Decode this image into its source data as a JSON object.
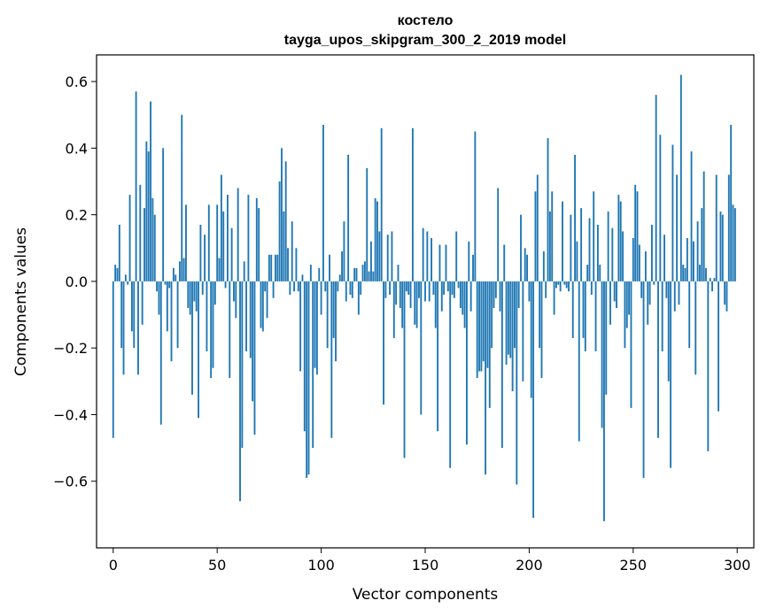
{
  "chart_data": {
    "type": "bar",
    "title": "костело",
    "subtitle": "tayga_upos_skipgram_300_2_2019 model",
    "xlabel": "Vector components",
    "ylabel": "Components values",
    "xlim": [
      -8,
      308
    ],
    "ylim": [
      -0.8,
      0.68
    ],
    "x_ticks": [
      0,
      50,
      100,
      150,
      200,
      250,
      300
    ],
    "x_tick_labels": [
      "0",
      "50",
      "100",
      "150",
      "200",
      "250",
      "300"
    ],
    "y_ticks": [
      -0.6,
      -0.4,
      -0.2,
      0.0,
      0.2,
      0.4,
      0.6
    ],
    "y_tick_labels": [
      "−0.6",
      "−0.4",
      "−0.2",
      "0.0",
      "0.2",
      "0.4",
      "0.6"
    ],
    "bar_color": "#1f77b4",
    "x": "indices 0..299",
    "values": [
      -0.47,
      0.05,
      0.04,
      0.17,
      -0.2,
      -0.28,
      0.02,
      -0.01,
      0.26,
      -0.15,
      -0.2,
      0.57,
      -0.28,
      0.29,
      -0.13,
      0.22,
      0.42,
      0.39,
      0.54,
      0.25,
      0.2,
      -0.03,
      -0.1,
      -0.43,
      0.4,
      -0.01,
      -0.15,
      -0.02,
      -0.24,
      0.04,
      0.02,
      -0.2,
      0.06,
      0.5,
      0.07,
      0.23,
      -0.08,
      -0.1,
      -0.34,
      -0.06,
      -0.09,
      -0.41,
      0.17,
      -0.04,
      0.14,
      -0.21,
      0.23,
      -0.29,
      -0.26,
      -0.07,
      0.23,
      0.07,
      0.32,
      0.21,
      -0.02,
      0.26,
      -0.29,
      0.16,
      -0.06,
      -0.11,
      0.28,
      -0.66,
      -0.5,
      0.06,
      -0.21,
      0.26,
      -0.23,
      -0.36,
      -0.46,
      0.25,
      0.22,
      -0.14,
      -0.15,
      -0.03,
      -0.11,
      0.08,
      0.08,
      -0.05,
      0.08,
      0.08,
      0.3,
      0.4,
      0.21,
      0.36,
      0.1,
      -0.04,
      0.18,
      -0.03,
      0.1,
      -0.03,
      -0.27,
      0.02,
      -0.45,
      -0.59,
      -0.58,
      0.05,
      -0.5,
      -0.26,
      -0.28,
      0.04,
      -0.1,
      0.47,
      -0.03,
      -0.2,
      0.08,
      -0.47,
      -0.17,
      -0.24,
      -0.03,
      0.02,
      0.09,
      0.18,
      -0.06,
      0.38,
      -0.04,
      -0.05,
      0.04,
      0.04,
      -0.1,
      -0.04,
      0.05,
      0.06,
      0.34,
      0.03,
      0.12,
      0.03,
      0.25,
      0.24,
      0.15,
      0.46,
      -0.37,
      -0.05,
      0.14,
      -0.04,
      0.15,
      -0.17,
      -0.07,
      0.05,
      -0.08,
      -0.14,
      -0.53,
      -0.03,
      -0.04,
      -0.08,
      0.46,
      -0.13,
      -0.14,
      -0.05,
      -0.4,
      0.16,
      -0.06,
      0.15,
      -0.06,
      0.13,
      -0.04,
      -0.14,
      -0.45,
      0.11,
      -0.09,
      -0.04,
      0.11,
      -0.03,
      -0.56,
      -0.04,
      -0.05,
      0.15,
      -0.02,
      -0.08,
      -0.1,
      -0.14,
      -0.49,
      0.12,
      -0.09,
      0.08,
      0.45,
      -0.29,
      -0.27,
      -0.27,
      -0.24,
      -0.58,
      -0.26,
      -0.38,
      -0.2,
      -0.08,
      -0.05,
      0.28,
      -0.09,
      -0.5,
      0.11,
      -0.25,
      -0.22,
      -0.23,
      -0.33,
      -0.2,
      -0.61,
      -0.08,
      0.2,
      -0.3,
      0.1,
      0.08,
      -0.06,
      -0.35,
      -0.71,
      0.27,
      0.32,
      -0.2,
      -0.29,
      0.09,
      -0.05,
      0.43,
      0.21,
      0.27,
      -0.1,
      -0.02,
      -0.01,
      -0.03,
      0.24,
      -0.01,
      -0.02,
      -0.03,
      0.2,
      -0.17,
      0.38,
      0.12,
      -0.48,
      0.22,
      -0.17,
      -0.21,
      0.05,
      0.19,
      -0.04,
      0.27,
      -0.21,
      0.17,
      0.05,
      -0.44,
      -0.72,
      -0.34,
      0.21,
      -0.13,
      0.16,
      -0.06,
      -0.08,
      0.26,
      0.24,
      0.15,
      -0.2,
      -0.14,
      -0.1,
      -0.38,
      0.13,
      0.29,
      0.27,
      0.11,
      -0.05,
      -0.59,
      0.09,
      -0.13,
      -0.07,
      0.17,
      -0.01,
      0.56,
      -0.47,
      0.44,
      -0.21,
      0.14,
      -0.05,
      -0.3,
      -0.56,
      0.41,
      -0.09,
      0.32,
      -0.07,
      0.62,
      0.05,
      0.04,
      0.13,
      -0.2,
      0.39,
      0.12,
      -0.28,
      0.18,
      0.05,
      0.22,
      0.33,
      0.04,
      -0.51,
      0.01,
      -0.03,
      0.01,
      0.32,
      -0.39,
      0.21,
      0.2,
      -0.07,
      -0.09,
      0.32,
      0.47,
      0.23,
      0.22
    ]
  }
}
